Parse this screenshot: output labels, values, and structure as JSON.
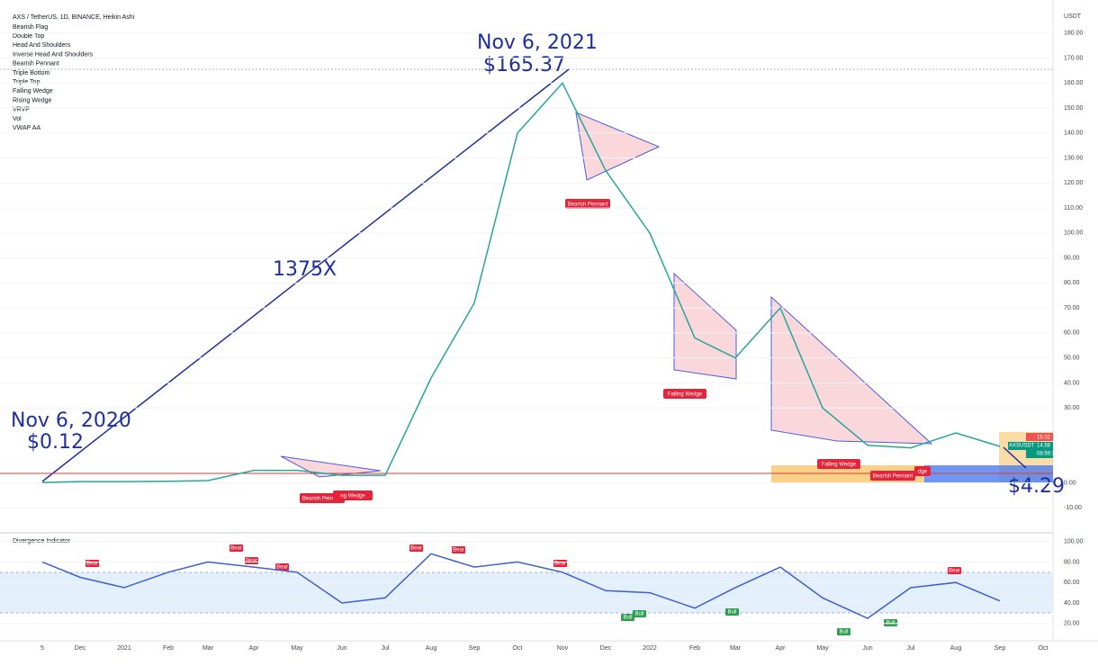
{
  "header": {
    "title": "AXS / TetherUS, 1D, BINANCE, Heikin Ashi",
    "indicators": [
      "Bearish Flag",
      "Double Top",
      "Head And Shoulders",
      "Inverse Head And Shoulders",
      "Bearish Pennant",
      "Triple Bottom",
      "Triple Top",
      "Falling Wedge",
      "Rising Wedge",
      "VRVP",
      "Vol",
      "VWAP AA"
    ],
    "currency": "USDT"
  },
  "annotations": {
    "top_date": "Nov 6, 2021",
    "top_price": "$165.37",
    "multiple": "1375X",
    "start_date": "Nov 6, 2020",
    "start_price": "$0.12",
    "target_price": "$4.29"
  },
  "patterns": [
    "Bearish Pennant",
    "Falling Wedge",
    "Bearish Pennant",
    "Falling Wedge",
    "Bearish Pennant",
    "ng Wedge",
    "dge"
  ],
  "price_tags": {
    "prev": "15.02",
    "symbol": "AXSUSDT",
    "last": "14.58",
    "countdown": "08:59:31"
  },
  "divergence_tags": [
    "Bear",
    "Bear",
    "Bear",
    "Bear",
    "Bear",
    "Bear",
    "Bear",
    "Bull",
    "Bull",
    "Bull",
    "Bull",
    "Bull",
    "Bear"
  ],
  "chart_data": [
    {
      "type": "line",
      "categories": [
        "5",
        "Dec",
        "2021",
        "Feb",
        "Mar",
        "Apr",
        "May",
        "Jun",
        "Jul",
        "Aug",
        "Sep",
        "Oct",
        "Nov",
        "Dec",
        "2022",
        "Feb",
        "Mar",
        "Apr",
        "May",
        "Jun",
        "Jul",
        "Aug",
        "Sep",
        "Oct"
      ],
      "series": [
        {
          "name": "AXSUSDT",
          "color": "#26a69a",
          "values": [
            0.12,
            0.5,
            0.5,
            0.6,
            0.9,
            5,
            5,
            3,
            3,
            42,
            72,
            140,
            160,
            125,
            100,
            58,
            50,
            70,
            30,
            15,
            14,
            20,
            14.58,
            null
          ]
        }
      ],
      "ylim": [
        -20,
        190
      ],
      "yticks": [
        {
          "value": 180,
          "label": "180.00"
        },
        {
          "value": 170,
          "label": "170.00"
        },
        {
          "value": 160,
          "label": "160.00"
        },
        {
          "value": 150,
          "label": "150.00"
        },
        {
          "value": 140,
          "label": "140.00"
        },
        {
          "value": 130,
          "label": "130.00"
        },
        {
          "value": 120,
          "label": "120.00"
        },
        {
          "value": 110,
          "label": "110.00"
        },
        {
          "value": 100,
          "label": "100.00"
        },
        {
          "value": 90,
          "label": "90.00"
        },
        {
          "value": 80,
          "label": "80.00"
        },
        {
          "value": 70,
          "label": "70.00"
        },
        {
          "value": 60,
          "label": "60.00"
        },
        {
          "value": 50,
          "label": "50.00"
        },
        {
          "value": 40,
          "label": "40.00"
        },
        {
          "value": 30,
          "label": "30.00"
        },
        {
          "value": 0,
          "label": "0.00"
        },
        {
          "value": -10,
          "label": "-10.00"
        }
      ],
      "grid": true
    },
    {
      "type": "line",
      "title": "Divergence Indicator",
      "categories": [
        "5",
        "Dec",
        "2021",
        "Feb",
        "Mar",
        "Apr",
        "May",
        "Jun",
        "Jul",
        "Aug",
        "Sep",
        "Oct",
        "Nov",
        "Dec",
        "2022",
        "Feb",
        "Mar",
        "Apr",
        "May",
        "Jun",
        "Jul",
        "Aug",
        "Sep",
        "Oct"
      ],
      "series": [
        {
          "name": "Divergence",
          "color": "#3d5fd1",
          "values": [
            80,
            65,
            55,
            70,
            80,
            75,
            70,
            40,
            45,
            88,
            75,
            80,
            70,
            52,
            50,
            35,
            55,
            75,
            45,
            25,
            55,
            60,
            42,
            null
          ]
        }
      ],
      "ylim": [
        10,
        105
      ],
      "yticks": [
        {
          "value": 100,
          "label": "100.00"
        },
        {
          "value": 80,
          "label": "80.00"
        },
        {
          "value": 60,
          "label": "60.00"
        },
        {
          "value": 40,
          "label": "40.00"
        },
        {
          "value": 20,
          "label": "20.00"
        }
      ],
      "grid": true
    }
  ]
}
